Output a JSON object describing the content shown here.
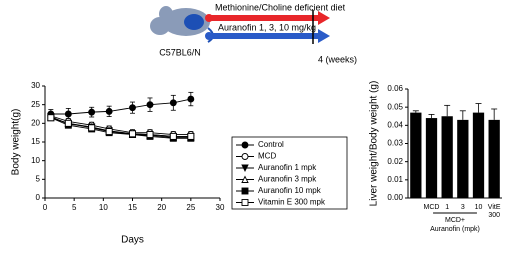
{
  "schematic": {
    "strain": "C57BL6/N",
    "diet": "Methionine/Choline deficient diet",
    "treatment": "Auranofin 1, 3, 10 mg/kg",
    "endpoint": "4 (weeks)"
  },
  "chart_data": [
    {
      "type": "line",
      "xlabel": "Days",
      "ylabel": "Body weight(g)",
      "xlim": [
        0,
        30
      ],
      "xticks": [
        0,
        5,
        10,
        15,
        20,
        25,
        30
      ],
      "ylim": [
        0,
        30
      ],
      "yticks": [
        0,
        5,
        10,
        15,
        20,
        25,
        30
      ],
      "x": [
        1,
        4,
        8,
        11,
        15,
        18,
        22,
        25
      ],
      "series": [
        {
          "name": "Control",
          "color": "#000000",
          "marker": "circle-filled",
          "values": [
            22.5,
            22.5,
            23,
            23.2,
            24.2,
            25,
            25.5,
            26.5
          ],
          "errors": [
            1.2,
            1.5,
            1.3,
            1.4,
            1.5,
            1.8,
            2,
            1.8
          ]
        },
        {
          "name": "MCD",
          "color": "#000000",
          "marker": "circle-open",
          "values": [
            22,
            20.5,
            19.5,
            18.5,
            17.5,
            17.5,
            17,
            17
          ],
          "errors": [
            0.8,
            0.8,
            0.8,
            0.8,
            0.8,
            0.8,
            0.8,
            0.8
          ]
        },
        {
          "name": "Auranofin 1 mpk",
          "color": "#000000",
          "marker": "triangle-down-filled",
          "values": [
            21.8,
            19.8,
            19,
            18,
            17.2,
            17,
            16.5,
            16.5
          ],
          "errors": [
            0.7,
            0.7,
            0.7,
            0.7,
            0.7,
            0.7,
            0.7,
            0.7
          ]
        },
        {
          "name": "Auranofin 3 mpk",
          "color": "#000000",
          "marker": "triangle-up-open",
          "values": [
            21.5,
            20,
            19,
            17.8,
            17,
            16.8,
            16.2,
            16.2
          ],
          "errors": [
            0.7,
            0.7,
            0.7,
            0.7,
            0.7,
            0.7,
            0.7,
            0.7
          ]
        },
        {
          "name": "Auranofin 10 mpk",
          "color": "#000000",
          "marker": "square-filled",
          "values": [
            21.5,
            19.5,
            18.5,
            17.5,
            17,
            16.5,
            16,
            16
          ],
          "errors": [
            0.7,
            0.7,
            0.7,
            0.7,
            0.7,
            0.7,
            0.7,
            0.7
          ]
        },
        {
          "name": "Vitamin E 300 mpk",
          "color": "#000000",
          "marker": "square-open",
          "values": [
            21.5,
            20,
            18.8,
            17.8,
            17.2,
            17,
            16.5,
            16.5
          ],
          "errors": [
            0.7,
            0.7,
            0.7,
            0.7,
            0.7,
            0.7,
            0.7,
            0.7
          ]
        }
      ]
    },
    {
      "type": "bar",
      "ylabel": "Liver weight/Body weight (g)",
      "group_label": "MCD+",
      "group_sublabel": "Auranofin (mpk)",
      "ylim": [
        0,
        0.06
      ],
      "yticks": [
        {
          "value": 0,
          "label": "0.00"
        },
        0.01,
        0.02,
        0.03,
        0.04,
        0.05,
        0.06
      ],
      "categories": [
        null,
        "MCD",
        "1",
        "3",
        "10",
        "VitE 300"
      ],
      "color": "#000000",
      "values": [
        0.047,
        0.044,
        0.045,
        0.043,
        0.047,
        0.043
      ],
      "errors": [
        0.001,
        0.002,
        0.006,
        0.005,
        0.005,
        0.006
      ]
    }
  ]
}
